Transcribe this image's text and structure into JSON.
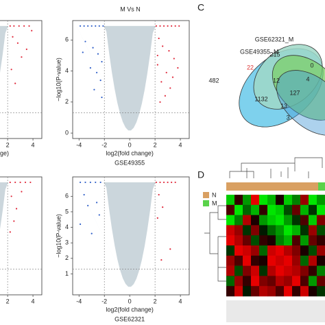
{
  "title": "M Vs N",
  "panel_c_label": "C",
  "panel_d_label": "D",
  "volcanoes": [
    {
      "xlabel": "ge)",
      "xticks": [
        2,
        4
      ],
      "xlim": [
        -4.5,
        4.7
      ],
      "ylim": [
        -0.35,
        7.25
      ],
      "red": {
        "x": [
          2.2,
          2.5,
          2.9,
          3.3,
          3.7,
          2.4,
          2.8,
          3.1,
          2.3,
          3.9,
          2.6,
          3.5
        ],
        "y": [
          6.9,
          6.9,
          6.9,
          6.9,
          6.9,
          6.2,
          5.8,
          4.9,
          4.1,
          6.6,
          3.2,
          5.4
        ]
      }
    },
    {
      "xlabel": "log2(fold change)",
      "ylabel": "−log10(P-value)",
      "caption": "GSE49355",
      "xticks": [
        -4,
        -2,
        0,
        2,
        4
      ],
      "yticks": [
        0,
        2,
        4,
        6
      ],
      "xlim": [
        -4.5,
        4.7
      ],
      "ylim": [
        -0.35,
        7.25
      ],
      "red": {
        "x": [
          2.1,
          2.4,
          2.7,
          3.0,
          3.3,
          3.6,
          3.9,
          2.3,
          2.6,
          3.1,
          3.5,
          2.2,
          2.9,
          3.8,
          2.5,
          3.2,
          2.8,
          2.4,
          3.4,
          2.2
        ],
        "y": [
          6.9,
          6.9,
          6.9,
          6.9,
          6.9,
          6.9,
          6.9,
          6.1,
          5.6,
          5.3,
          4.8,
          4.4,
          3.9,
          4.2,
          3.3,
          2.9,
          2.4,
          2.0,
          3.6,
          5.0
        ]
      },
      "blue": {
        "x": [
          -3.9,
          -3.6,
          -3.3,
          -3.0,
          -2.7,
          -2.4,
          -2.1,
          -3.5,
          -2.9,
          -2.5,
          -2.2,
          -3.1,
          -2.6,
          -2.3,
          -3.7,
          -2.8,
          -2.2
        ],
        "y": [
          6.9,
          6.9,
          6.9,
          6.9,
          6.9,
          6.9,
          6.9,
          5.9,
          5.5,
          5.1,
          4.6,
          4.2,
          3.9,
          3.4,
          5.2,
          2.8,
          2.3
        ]
      }
    },
    {
      "xlabel": "",
      "xticks": [
        2,
        4
      ],
      "xlim": [
        -4.5,
        4.7
      ],
      "ylim": [
        -0.35,
        7.25
      ],
      "red": {
        "x": [
          2.2,
          2.6,
          3.0,
          3.4,
          3.8,
          2.3,
          2.7,
          2.5,
          2.2,
          3.1
        ],
        "y": [
          6.9,
          6.9,
          6.9,
          6.9,
          6.9,
          6.0,
          5.2,
          4.4,
          3.7,
          6.3
        ]
      }
    },
    {
      "xlabel": "log2(fold change)",
      "ylabel": "−log10(P-value)",
      "caption": "GSE62321",
      "xticks": [
        -4,
        -2,
        0,
        2,
        4
      ],
      "yticks": [
        1,
        2,
        3,
        4,
        5,
        6
      ],
      "xlim": [
        -4.5,
        4.7
      ],
      "ylim": [
        -0.35,
        7.25
      ],
      "red": {
        "x": [
          2.1,
          2.4,
          2.7,
          3.0,
          3.3,
          3.6,
          2.3,
          2.6,
          2.2,
          3.2,
          2.5
        ],
        "y": [
          6.9,
          6.9,
          6.9,
          6.9,
          6.9,
          6.9,
          6.1,
          5.3,
          4.6,
          2.6,
          1.9
        ]
      },
      "blue": {
        "x": [
          -3.9,
          -3.5,
          -3.1,
          -2.7,
          -2.3,
          -3.6,
          -3.3,
          -2.6,
          -3.9,
          -2.4,
          -3.0
        ],
        "y": [
          6.9,
          6.9,
          6.9,
          6.9,
          6.9,
          6.1,
          5.4,
          5.6,
          4.2,
          4.8,
          3.6
        ]
      }
    }
  ],
  "venn": {
    "sets": [
      "GSE62321_M",
      "GSE49355_M"
    ],
    "counts": [
      "215",
      "0",
      "22",
      "12",
      "4",
      "482",
      "127",
      "1132",
      "13",
      "3"
    ]
  },
  "heatmap": {
    "legend": [
      "N",
      "M"
    ],
    "values": [
      [
        -0.8,
        0.2,
        -0.6,
        0.9,
        -0.9,
        -0.7,
        0.1,
        -0.8,
        -0.5,
        0.6,
        -0.9,
        -0.6
      ],
      [
        0.3,
        -0.9,
        -0.4,
        -0.7,
        0.2,
        -0.9,
        -0.8,
        -0.3,
        0.4,
        -0.7,
        -0.2,
        -0.9
      ],
      [
        -0.9,
        -0.5,
        0.7,
        0.1,
        -0.6,
        -0.8,
        -0.9,
        -0.6,
        -0.2,
        0.3,
        -0.8,
        0.5
      ],
      [
        0.8,
        0.6,
        -0.2,
        0.5,
        -0.1,
        -0.4,
        -0.6,
        -0.9,
        -0.7,
        -0.2,
        0.6,
        -0.3
      ],
      [
        0.9,
        0.7,
        0.4,
        -0.3,
        0.2,
        0.1,
        -0.5,
        -0.7,
        0.3,
        -0.6,
        0.4,
        0.2
      ],
      [
        -0.2,
        0.9,
        0.8,
        0.6,
        -0.4,
        0.8,
        0.9,
        0.7,
        0.5,
        0.1,
        -0.3,
        0.6
      ],
      [
        0.6,
        0.3,
        0.9,
        0.2,
        0.1,
        0.9,
        0.8,
        0.9,
        0.6,
        -0.4,
        0.7,
        0.1
      ],
      [
        0.7,
        -0.3,
        0.5,
        0.8,
        -0.2,
        0.7,
        0.9,
        0.8,
        0.7,
        0.5,
        0.2,
        -0.5
      ],
      [
        -0.4,
        0.6,
        0.2,
        0.9,
        0.5,
        0.4,
        0.7,
        0.6,
        0.9,
        0.3,
        -0.6,
        0.4
      ],
      [
        0.2,
        0.8,
        -0.1,
        0.4,
        0.7,
        0.6,
        0.3,
        0.9,
        0.2,
        0.8,
        0.1,
        -0.2
      ]
    ]
  }
}
